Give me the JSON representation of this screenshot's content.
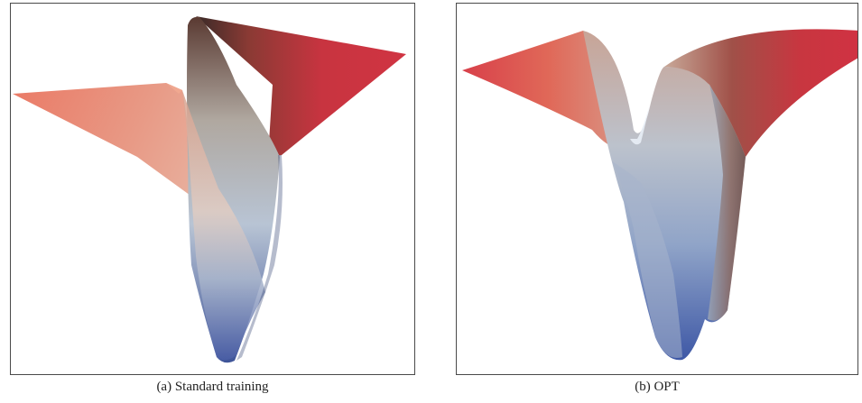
{
  "figure": {
    "panels": [
      {
        "id": "a",
        "caption": "(a) Standard training",
        "content": "3D loss landscape surface"
      },
      {
        "id": "b",
        "caption": "(b) OPT",
        "content": "3D loss landscape surface"
      }
    ],
    "colors": {
      "high": "#c8323c",
      "mid": "#c9b8b0",
      "low": "#4a63a8",
      "light_red": "#e8705c",
      "frame": "#4a4a4a"
    }
  }
}
